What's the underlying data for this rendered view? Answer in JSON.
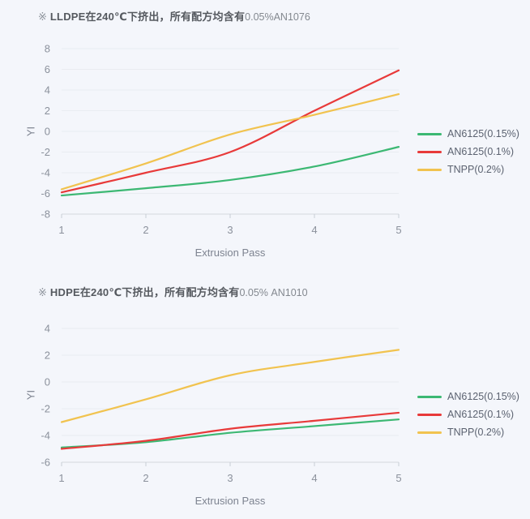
{
  "page": {
    "background": "#f4f6fb"
  },
  "chart_data": [
    {
      "type": "line",
      "title_marker": "※",
      "title_main": "LLDPE在240℃下挤出，所有配方均含有",
      "title_note": "0.05%AN1076",
      "xlabel": "Extrusion Pass",
      "ylabel": "YI",
      "x": [
        1,
        2,
        3,
        4,
        5
      ],
      "xlim": [
        1,
        5
      ],
      "ylim": [
        -8,
        8
      ],
      "ytick_step": 2,
      "grid": true,
      "legend_position": "right",
      "series": [
        {
          "name": "AN6125(0.15%)",
          "color": "#3cb873",
          "values": [
            -6.2,
            -5.5,
            -4.7,
            -3.4,
            -1.5
          ]
        },
        {
          "name": "AN6125(0.1%)",
          "color": "#e83a3a",
          "values": [
            -5.9,
            -4.0,
            -2.0,
            2.0,
            5.9
          ]
        },
        {
          "name": "TNPP(0.2%)",
          "color": "#f1c34f",
          "values": [
            -5.6,
            -3.1,
            -0.3,
            1.6,
            3.6
          ]
        }
      ]
    },
    {
      "type": "line",
      "title_marker": "※",
      "title_main": "HDPE在240℃下挤出，所有配方均含有",
      "title_note": "0.05% AN1010",
      "xlabel": "Extrusion Pass",
      "ylabel": "YI",
      "x": [
        1,
        2,
        3,
        4,
        5
      ],
      "xlim": [
        1,
        5
      ],
      "ylim": [
        -6,
        4
      ],
      "ytick_step": 2,
      "grid": true,
      "legend_position": "right",
      "series": [
        {
          "name": "AN6125(0.15%)",
          "color": "#3cb873",
          "values": [
            -4.9,
            -4.5,
            -3.8,
            -3.3,
            -2.8
          ]
        },
        {
          "name": "AN6125(0.1%)",
          "color": "#e83a3a",
          "values": [
            -5.0,
            -4.4,
            -3.5,
            -2.9,
            -2.3
          ]
        },
        {
          "name": "TNPP(0.2%)",
          "color": "#f1c34f",
          "values": [
            -3.0,
            -1.3,
            0.5,
            1.5,
            2.4
          ]
        }
      ]
    }
  ],
  "theme": {
    "grid_color": "#e9ecf1",
    "axis_color": "#d4d8de",
    "tick_color": "#c9ced6",
    "tick_text_color": "#8b919c"
  }
}
